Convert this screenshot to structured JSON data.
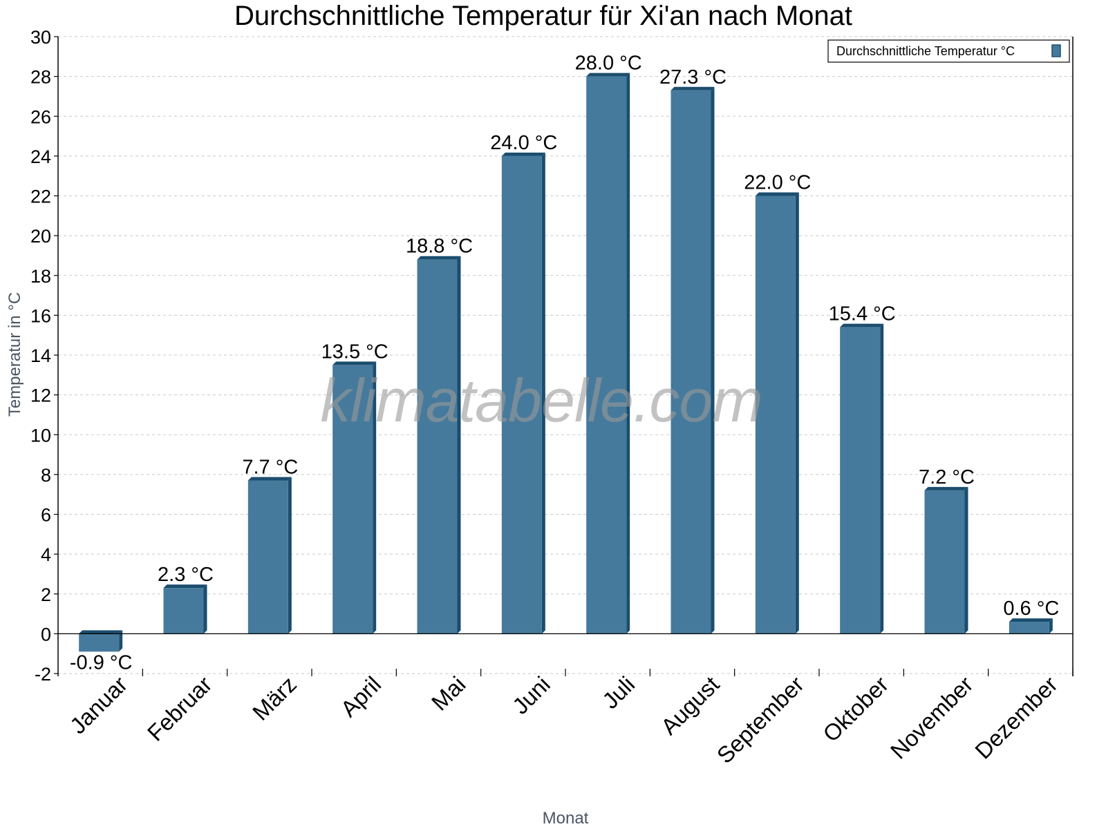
{
  "chart_data": {
    "type": "bar",
    "title": "Durchschnittliche Temperatur für Xi'an nach Monat",
    "xlabel": "Monat",
    "ylabel": "Temperatur in °C",
    "categories": [
      "Januar",
      "Februar",
      "März",
      "April",
      "Mai",
      "Juni",
      "Juli",
      "August",
      "September",
      "Oktober",
      "November",
      "Dezember"
    ],
    "series": [
      {
        "name": "Durchschnittliche Temperatur °C",
        "values": [
          -0.9,
          2.3,
          7.7,
          13.5,
          18.8,
          24.0,
          28.0,
          27.3,
          22.0,
          15.4,
          7.2,
          0.6
        ],
        "labels": [
          "-0.9 °C",
          "2.3 °C",
          "7.7 °C",
          "13.5 °C",
          "18.8 °C",
          "24.0 °C",
          "28.0 °C",
          "27.3 °C",
          "22.0 °C",
          "15.4 °C",
          "7.2 °C",
          "0.6 °C"
        ],
        "color": "#467a9c",
        "edge_color": "#1b4d6e"
      }
    ],
    "ylim": [
      -2,
      30
    ],
    "yticks": [
      -2,
      0,
      2,
      4,
      6,
      8,
      10,
      12,
      14,
      16,
      18,
      20,
      22,
      24,
      26,
      28,
      30
    ],
    "grid": true,
    "legend_position": "top-right",
    "watermark": "klimatabelle.com"
  }
}
